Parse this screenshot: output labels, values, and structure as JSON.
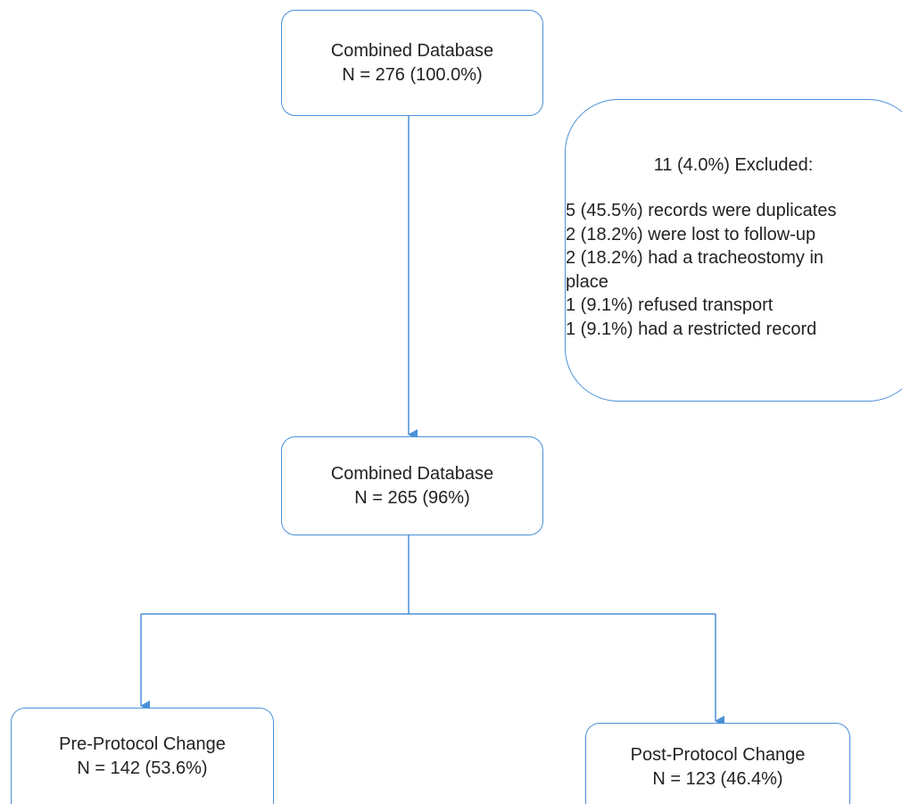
{
  "flowchart": {
    "top_box": {
      "title": "Combined Database",
      "count": "N = 276 (100.0%)"
    },
    "exclusion_box": {
      "heading": "11 (4.0%) Excluded:",
      "items": [
        "5 (45.5%) records were duplicates",
        "2 (18.2%) were lost to follow-up",
        "2 (18.2%) had a tracheostomy in",
        "place",
        "1 (9.1%) refused transport",
        "1 (9.1%) had a restricted record"
      ]
    },
    "middle_box": {
      "title": "Combined Database",
      "count": "N = 265 (96%)"
    },
    "pre_box": {
      "title": "Pre-Protocol Change",
      "count": "N = 142 (53.6%)"
    },
    "post_box": {
      "title": "Post-Protocol Change",
      "count": "N = 123 (46.4%)"
    }
  },
  "colors": {
    "line": "#4a90d9",
    "text": "#222222",
    "background": "#ffffff"
  }
}
